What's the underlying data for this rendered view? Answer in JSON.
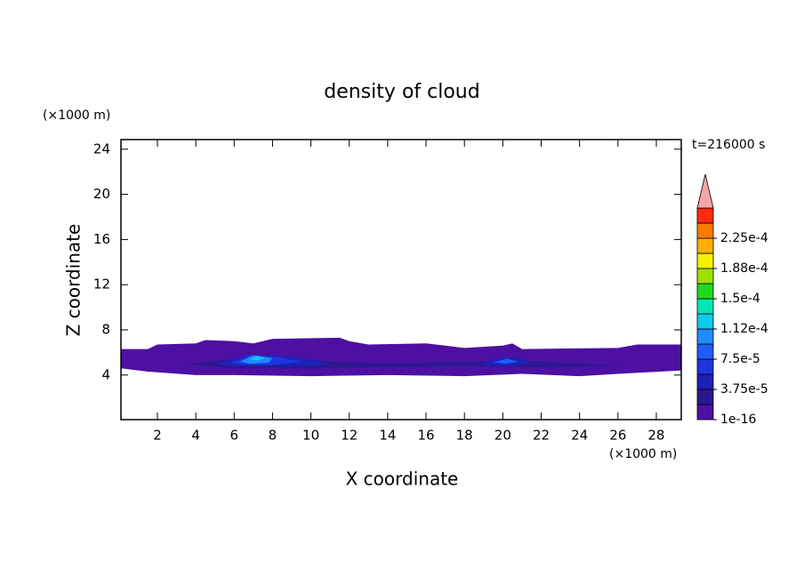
{
  "chart_data": {
    "type": "contour",
    "title": "density of cloud",
    "x_label": "X coordinate",
    "y_label": "Z coordinate",
    "x_unit": "(×1000 m)",
    "y_unit": "(×1000 m)",
    "time_label": "t=216000 s",
    "xlim": [
      0.1,
      29.3
    ],
    "ylim": [
      0.05,
      24.85
    ],
    "xticks": [
      2,
      4,
      6,
      8,
      10,
      12,
      14,
      16,
      18,
      20,
      22,
      24,
      26,
      28
    ],
    "yticks": [
      4,
      8,
      12,
      16,
      20,
      24
    ],
    "colorbar": {
      "levels": [
        1e-16,
        1.875e-05,
        3.75e-05,
        5.625e-05,
        7.5e-05,
        9.375e-05,
        0.0001125,
        0.00013125,
        0.00015,
        0.00016875,
        0.0001875,
        0.00020625,
        0.000225
      ],
      "colors": [
        "#4d10a2",
        "#2a1890",
        "#1f20b8",
        "#1e35e0",
        "#1f5cf8",
        "#1e8cff",
        "#10c8f0",
        "#00e8b0",
        "#20d820",
        "#9ee000",
        "#f4f000",
        "#ffb000",
        "#ff7a00",
        "#ff2a10"
      ],
      "extend_color": "#f4a6a6",
      "ticks": [
        {
          "value": 1e-16,
          "label": "1e-16"
        },
        {
          "value": 3.75e-05,
          "label": "3.75e-5"
        },
        {
          "value": 7.5e-05,
          "label": "7.5e-5"
        },
        {
          "value": 0.0001125,
          "label": "1.12e-4"
        },
        {
          "value": 0.00015,
          "label": "1.5e-4"
        },
        {
          "value": 0.0001875,
          "label": "1.88e-4"
        },
        {
          "value": 0.000225,
          "label": "2.25e-4"
        }
      ]
    },
    "regions": [
      {
        "level": 1e-16,
        "x": [
          0.1,
          1.5,
          2,
          4,
          4.5,
          6,
          7,
          8,
          11.5,
          12,
          13,
          16,
          17,
          18,
          20,
          20.5,
          21,
          26,
          27,
          29.3,
          29.3,
          26,
          24,
          21,
          18,
          14,
          10,
          6,
          4,
          1.5,
          0.1
        ],
        "z": [
          6.3,
          6.3,
          6.7,
          6.8,
          7.1,
          7.0,
          6.8,
          7.2,
          7.3,
          7.0,
          6.7,
          6.8,
          6.6,
          6.4,
          6.6,
          6.8,
          6.3,
          6.4,
          6.7,
          6.7,
          4.4,
          4.1,
          3.9,
          4.1,
          3.9,
          4.0,
          3.9,
          4.0,
          4.0,
          4.3,
          4.6
        ]
      },
      {
        "level": 1.875e-05,
        "x": [
          3.5,
          6,
          10,
          14,
          18,
          22,
          26,
          22,
          18,
          14,
          10,
          6
        ],
        "z": [
          5.0,
          5.4,
          5.3,
          5.0,
          5.2,
          5.2,
          4.8,
          4.7,
          4.8,
          4.7,
          4.6,
          4.6
        ]
      },
      {
        "level": 3.75e-05,
        "x": [
          5,
          6.5,
          8,
          10,
          11,
          10,
          8,
          6
        ],
        "z": [
          5.0,
          5.7,
          5.8,
          5.4,
          5.0,
          4.8,
          4.8,
          4.8
        ]
      },
      {
        "level": 5.625e-05,
        "x": [
          5.8,
          6.8,
          8.2,
          9.5,
          8.2,
          6.5
        ],
        "z": [
          5.1,
          5.75,
          5.6,
          5.2,
          4.9,
          4.9
        ]
      },
      {
        "level": 9.375e-05,
        "x": [
          6.3,
          7.0,
          8.0,
          7.8,
          6.8
        ],
        "z": [
          5.2,
          5.75,
          5.5,
          5.1,
          5.0
        ]
      },
      {
        "level": 0.0001125,
        "x": [
          6.8,
          7.2,
          7.6,
          7.2
        ],
        "z": [
          5.4,
          5.7,
          5.5,
          5.3
        ]
      },
      {
        "level": 3.75e-05,
        "x": [
          18.8,
          20,
          21,
          21.5,
          20.5,
          19.2
        ],
        "z": [
          5.0,
          5.6,
          5.5,
          5.0,
          4.8,
          4.8
        ]
      },
      {
        "level": 7.5e-05,
        "x": [
          19.5,
          20.2,
          20.8,
          20.2
        ],
        "z": [
          5.1,
          5.45,
          5.2,
          5.0
        ]
      }
    ]
  }
}
